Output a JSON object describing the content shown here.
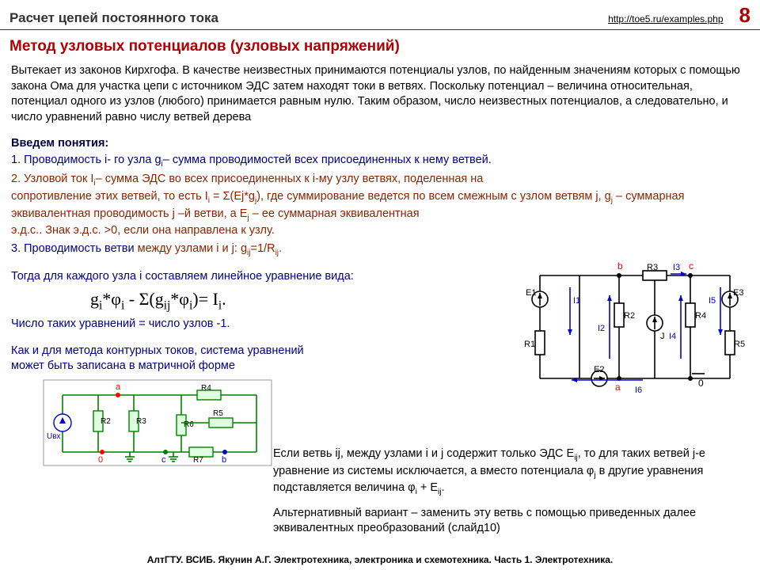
{
  "header": {
    "title": "Расчет цепей постоянного тока",
    "url": "http://toe5.ru/examples.php",
    "slide_number": "8"
  },
  "section_title": "Метод узловых потенциалов (узловых напряжений)",
  "intro": "Вытекает из законов Кирхгофа. В качестве неизвестных принимаются потенциалы узлов, по найденным значениям которых с помощью закона Ома для участка цепи с источником ЭДС затем находят токи в ветвях. Поскольку потенциал – величина относительная, потенциал одного из узлов (любого) принимается равным нулю. Таким образом, число неизвестных потенциалов, а следовательно, и число уравнений равно числу ветвей дерева",
  "concepts": {
    "header": "Введем понятия:",
    "item1_a": "1. Проводимость i- го узла g",
    "item1_b": "– сумма проводимостей всех присоединенных к нему ветвей.",
    "item2_a": "2. Узловой ток I",
    "item2_b": "– сумма ЭДС во всех присоединенных к i-му узлу ветвях, поделенная на",
    "item2_c": "сопротивление этих ветвей, то есть I",
    "item2_d": " = Σ(Ej*g",
    "item2_e": "), где суммирование ведется по всем смежным с узлом ветвям j,  g",
    "item2_f": " – суммарная эквивалентная проводимость j –й ветви, а E",
    "item2_g": " – ее суммарная эквивалентная",
    "item2_h": "э.д.с.. Знак э.д.с. >0, если она направлена к узлу.",
    "item3_a": "3. Проводимость ветви ",
    "item3_b": "между узлами i и j:  g",
    "item3_c": "=1/R",
    "item3_d": "."
  },
  "body": {
    "then_line": "Тогда для каждого узла i составляем линейное уравнение вида:",
    "formula": "gᵢ*φᵢ - Σ(gᵢⱼ*φᵢ)= Iᵢ.",
    "count_line": "Число таких уравнений = число узлов -1.",
    "matrix_line1": "Как и для метода контурных токов, система уравнений",
    "matrix_line2": "может быть записана в матричной форме"
  },
  "after": {
    "p1a": "Если ветвь ij, между узлами i и j  содержит только ЭДС E",
    "p1b": ", то для таких ветвей j-е уравнение из системы исключается, а вместо потенциала φ",
    "p1c": " в другие уравнения подставляется величина φ",
    "p1d": " + E",
    "p1e": ".",
    "p2": "Альтернативный вариант – заменить эту ветвь с помощью приведенных далее эквивалентных преобразований (слайд10)"
  },
  "footer": "АлтГТУ. ВСИБ. Якунин А.Г.  Электротехника, электроника и схемотехника. Часть 1. Электротехника.",
  "diag1": {
    "stroke": "#000000",
    "current_color": "#0000cc",
    "node_color": "#ff0000",
    "labels": {
      "b": "b",
      "c": "c",
      "a": "a",
      "zero": "0",
      "E1": "E1",
      "E2": "E2",
      "E3": "E3",
      "R1": "R1",
      "R2": "R2",
      "R3": "R3",
      "R4": "R4",
      "R5": "R5",
      "I1": "I1",
      "I2": "I2",
      "I3": "I3",
      "I4": "I4",
      "I5": "I5",
      "I6": "I6",
      "J": "J"
    }
  },
  "diag2": {
    "wire_color": "#008000",
    "node_color_a": "#ff0000",
    "node_color_0": "#ff0000",
    "src_color": "#0000cc",
    "labels": {
      "a": "a",
      "b": "b",
      "c": "c",
      "zero": "0",
      "U": "Uвх",
      "R2": "R2",
      "R3": "R3",
      "R4": "R4",
      "R5": "R5",
      "R6": "R6",
      "R7": "R7"
    }
  }
}
